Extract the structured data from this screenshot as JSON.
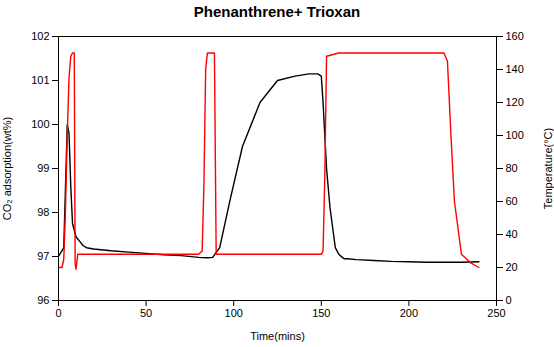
{
  "chart_data": {
    "type": "line",
    "title": "Phenanthrene+ Trioxan",
    "xlabel": "Time(mins)",
    "ylabel": "CO₂ adsorption(wt%)",
    "y2label": "Temperature(°C)",
    "xlim": [
      0,
      250
    ],
    "ylim": [
      96,
      102
    ],
    "y2lim": [
      0,
      160
    ],
    "xticks": [
      0,
      50,
      100,
      150,
      200,
      250
    ],
    "yticks": [
      96,
      97,
      98,
      99,
      100,
      101,
      102
    ],
    "y2ticks": [
      0,
      20,
      40,
      60,
      80,
      100,
      120,
      140,
      160
    ],
    "grid": false,
    "series": [
      {
        "color": "#000000",
        "x": [
          0,
          3,
          5,
          6,
          7,
          8,
          10,
          12,
          14,
          16,
          20,
          30,
          40,
          50,
          60,
          70,
          80,
          85,
          88,
          92,
          98,
          105,
          115,
          125,
          135,
          143,
          148,
          150,
          151,
          153,
          155,
          157,
          158,
          160,
          162,
          163,
          165,
          170,
          180,
          190,
          200,
          210,
          220,
          230,
          240
        ],
        "values": [
          97.0,
          97.2,
          100.0,
          99.8,
          98.6,
          97.75,
          97.45,
          97.35,
          97.25,
          97.2,
          97.17,
          97.13,
          97.1,
          97.07,
          97.04,
          97.02,
          96.98,
          96.97,
          96.98,
          97.2,
          98.3,
          99.5,
          100.5,
          101.0,
          101.1,
          101.15,
          101.15,
          101.1,
          100.5,
          99.0,
          98.1,
          97.5,
          97.2,
          97.05,
          96.98,
          96.95,
          96.95,
          96.93,
          96.91,
          96.89,
          96.88,
          96.87,
          96.87,
          96.87,
          96.88
        ]
      },
      {
        "color": "#ff0000",
        "axis": "y2",
        "x": [
          0,
          2,
          3,
          4,
          5,
          6,
          7,
          8,
          9,
          9.5,
          10,
          11,
          80,
          82,
          83,
          84,
          85,
          86,
          87,
          88,
          89,
          90,
          148,
          150,
          151,
          152,
          153,
          160,
          161,
          162,
          163,
          165,
          220,
          222,
          224,
          226,
          230,
          235,
          240
        ],
        "values": [
          20,
          20,
          25,
          55,
          100,
          135,
          148,
          150,
          150,
          22,
          19,
          28,
          28,
          30,
          70,
          140,
          150,
          150,
          150,
          150,
          150,
          28,
          28,
          28,
          30,
          75,
          148,
          150,
          150,
          150,
          150,
          150,
          150,
          145,
          100,
          60,
          28,
          23,
          20
        ]
      }
    ]
  }
}
